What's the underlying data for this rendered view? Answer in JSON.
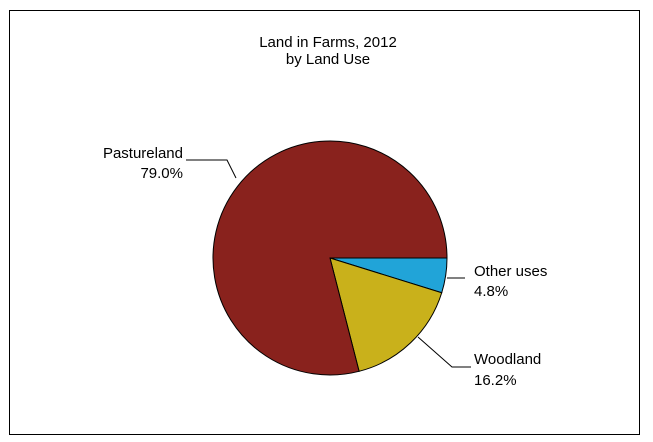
{
  "chart_data": {
    "type": "pie",
    "title": "Land in Farms, 2012",
    "subtitle": "by Land Use",
    "slices": [
      {
        "label": "Other uses",
        "value": 4.8,
        "value_label": "4.8%",
        "color": "#21a4d8"
      },
      {
        "label": "Woodland",
        "value": 16.2,
        "value_label": "16.2%",
        "color": "#c9b11b"
      },
      {
        "label": "Pastureland",
        "value": 79.0,
        "value_label": "79.0%",
        "color": "#89221d"
      }
    ],
    "start_angle": "3 o'clock",
    "direction": "clockwise",
    "legend": "none",
    "slice_outline_color": "#000000"
  }
}
